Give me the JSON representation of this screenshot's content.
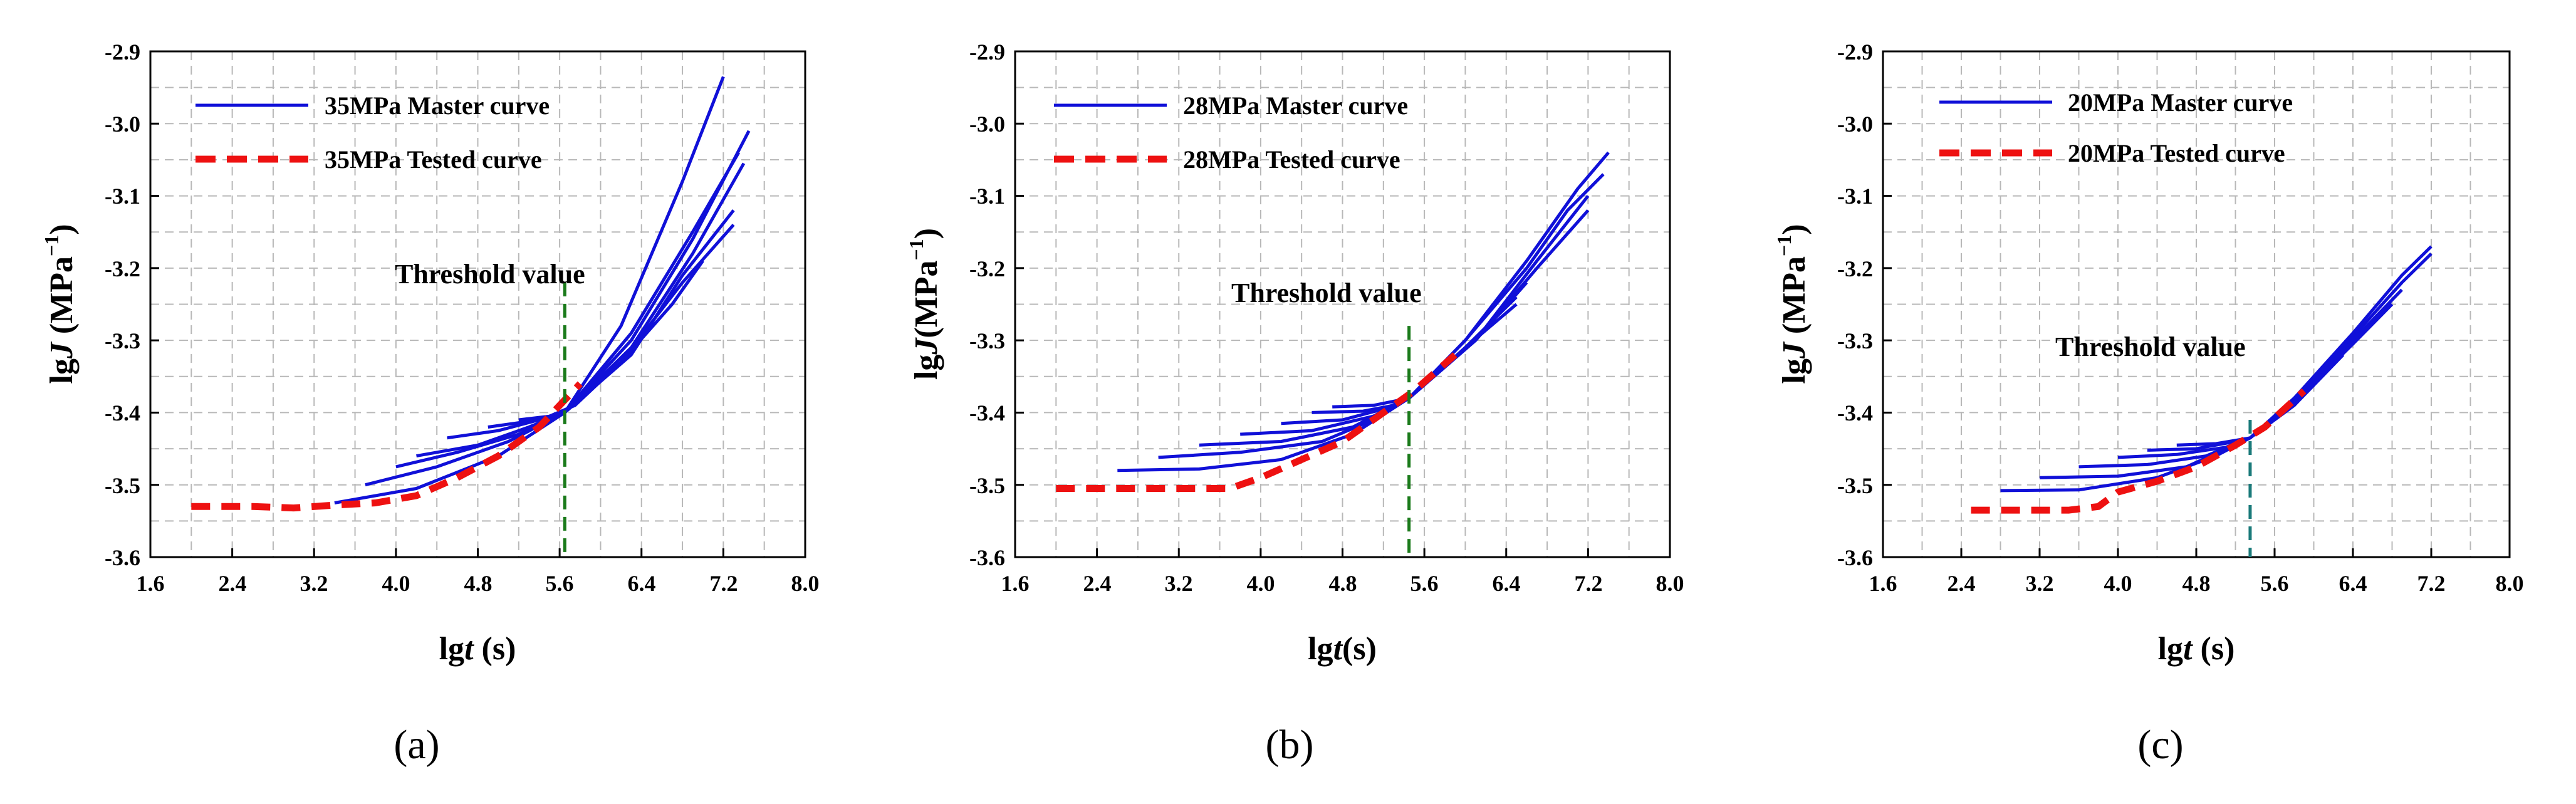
{
  "chart_data": [
    {
      "type": "line",
      "panel_label": "(a)",
      "xlabel_prefix": "lg",
      "xlabel_var": "t",
      "xlabel_suffix": " (s)",
      "ylabel_prefix": "lg",
      "ylabel_var": "J",
      "ylabel_unit": " (MPa",
      "ylabel_exp": "−1",
      "ylabel_close": ")",
      "xlim": [
        1.6,
        8.0
      ],
      "ylim": [
        -3.6,
        -2.9
      ],
      "xticks": [
        1.6,
        2.4,
        3.2,
        4.0,
        4.8,
        5.6,
        6.4,
        7.2,
        8.0
      ],
      "xtick_labels": [
        "1.6",
        "2.4",
        "3.2",
        "4.0",
        "4.8",
        "5.6",
        "6.4",
        "7.2",
        "8.0"
      ],
      "yticks": [
        -2.9,
        -3.0,
        -3.1,
        -3.2,
        -3.3,
        -3.4,
        -3.5,
        -3.6
      ],
      "ytick_labels": [
        "-2.9",
        "-3.0",
        "-3.1",
        "-3.2",
        "-3.3",
        "-3.4",
        "-3.5",
        "-3.6"
      ],
      "grid": true,
      "legend_position": "top-left",
      "legend": [
        "35MPa Master curve",
        "35MPa Tested curve"
      ],
      "threshold_label": "Threshold value",
      "threshold": {
        "x": 5.65,
        "y_top": -3.22,
        "color": "#1a7a1a"
      },
      "master_color": "#1010d8",
      "tested_color": "#ee1111",
      "series": [
        {
          "name": "master-1",
          "x": [
            3.4,
            4.2,
            5.0,
            5.65,
            6.2,
            6.8,
            7.2
          ],
          "y": [
            -3.525,
            -3.505,
            -3.46,
            -3.4,
            -3.28,
            -3.08,
            -2.935
          ]
        },
        {
          "name": "master-2",
          "x": [
            3.7,
            4.4,
            5.1,
            5.65,
            6.3,
            6.9,
            7.35
          ],
          "y": [
            -3.5,
            -3.475,
            -3.44,
            -3.4,
            -3.29,
            -3.15,
            -3.04
          ]
        },
        {
          "name": "master-3",
          "x": [
            4.0,
            4.6,
            5.2,
            5.65,
            6.3,
            6.9,
            7.45
          ],
          "y": [
            -3.475,
            -3.455,
            -3.43,
            -3.4,
            -3.3,
            -3.16,
            -3.01
          ]
        },
        {
          "name": "master-4",
          "x": [
            4.2,
            4.8,
            5.3,
            5.65,
            6.3,
            6.9,
            7.4
          ],
          "y": [
            -3.46,
            -3.445,
            -3.42,
            -3.4,
            -3.31,
            -3.18,
            -3.055
          ]
        },
        {
          "name": "master-5",
          "x": [
            4.5,
            5.0,
            5.4,
            5.65,
            6.3,
            6.8,
            7.3
          ],
          "y": [
            -3.435,
            -3.425,
            -3.41,
            -3.4,
            -3.32,
            -3.21,
            -3.12
          ]
        },
        {
          "name": "master-6",
          "x": [
            4.9,
            5.3,
            5.65,
            6.2,
            6.8,
            7.3
          ],
          "y": [
            -3.42,
            -3.412,
            -3.4,
            -3.33,
            -3.22,
            -3.14
          ]
        },
        {
          "name": "master-7",
          "x": [
            5.2,
            5.5,
            5.75,
            6.2,
            6.7,
            7.0
          ],
          "y": [
            -3.41,
            -3.405,
            -3.39,
            -3.33,
            -3.25,
            -3.19
          ]
        },
        {
          "name": "tested",
          "dashed": true,
          "x": [
            2.0,
            2.6,
            3.0,
            3.4,
            3.8,
            4.2,
            4.6,
            5.0,
            5.4,
            5.8
          ],
          "y": [
            -3.53,
            -3.53,
            -3.532,
            -3.528,
            -3.525,
            -3.515,
            -3.49,
            -3.46,
            -3.42,
            -3.36
          ]
        }
      ]
    },
    {
      "type": "line",
      "panel_label": "(b)",
      "xlabel_prefix": "lg",
      "xlabel_var": "t",
      "xlabel_suffix": "(s)",
      "ylabel_prefix": "lg",
      "ylabel_var": "J",
      "ylabel_unit": "(MPa",
      "ylabel_exp": "−1",
      "ylabel_close": ")",
      "xlim": [
        1.6,
        8.0
      ],
      "ylim": [
        -3.6,
        -2.9
      ],
      "xticks": [
        1.6,
        2.4,
        3.2,
        4.0,
        4.8,
        5.6,
        6.4,
        7.2,
        8.0
      ],
      "xtick_labels": [
        "1.6",
        "2.4",
        "3.2",
        "4.0",
        "4.8",
        "5.6",
        "6.4",
        "7.2",
        "8.0"
      ],
      "yticks": [
        -2.9,
        -3.0,
        -3.1,
        -3.2,
        -3.3,
        -3.4,
        -3.5,
        -3.6
      ],
      "ytick_labels": [
        "-2.9",
        "-3.0",
        "-3.1",
        "-3.2",
        "-3.3",
        "-3.4",
        "-3.5",
        "-3.6"
      ],
      "grid": true,
      "legend_position": "top-left",
      "legend": [
        "28MPa Master curve",
        "28MPa Tested curve"
      ],
      "threshold_label": "Threshold value",
      "threshold": {
        "x": 5.45,
        "y_top": -3.28,
        "color": "#1a7a1a"
      },
      "master_color": "#1010d8",
      "tested_color": "#ee1111",
      "series": [
        {
          "name": "master-1",
          "x": [
            2.6,
            3.4,
            4.2,
            4.9,
            5.45,
            6.0,
            6.6,
            7.1,
            7.4
          ],
          "y": [
            -3.48,
            -3.478,
            -3.465,
            -3.43,
            -3.38,
            -3.3,
            -3.19,
            -3.09,
            -3.04
          ]
        },
        {
          "name": "master-2",
          "x": [
            3.0,
            3.8,
            4.6,
            5.1,
            5.45,
            6.0,
            6.6,
            7.0,
            7.35
          ],
          "y": [
            -3.462,
            -3.455,
            -3.44,
            -3.41,
            -3.38,
            -3.3,
            -3.2,
            -3.12,
            -3.07
          ]
        },
        {
          "name": "master-3",
          "x": [
            3.4,
            4.2,
            4.9,
            5.45,
            6.1,
            6.7,
            7.2
          ],
          "y": [
            -3.445,
            -3.44,
            -3.42,
            -3.38,
            -3.3,
            -3.19,
            -3.1
          ]
        },
        {
          "name": "master-4",
          "x": [
            3.8,
            4.5,
            5.1,
            5.45,
            6.1,
            6.7,
            7.2
          ],
          "y": [
            -3.43,
            -3.425,
            -3.405,
            -3.38,
            -3.3,
            -3.2,
            -3.12
          ]
        },
        {
          "name": "master-5",
          "x": [
            4.2,
            4.8,
            5.2,
            5.45,
            6.1,
            6.6
          ],
          "y": [
            -3.415,
            -3.41,
            -3.395,
            -3.38,
            -3.3,
            -3.22
          ]
        },
        {
          "name": "master-6",
          "x": [
            4.5,
            5.0,
            5.3,
            5.45,
            6.0,
            6.5
          ],
          "y": [
            -3.4,
            -3.398,
            -3.39,
            -3.38,
            -3.31,
            -3.24
          ]
        },
        {
          "name": "master-7",
          "x": [
            4.7,
            5.1,
            5.45,
            6.0,
            6.5
          ],
          "y": [
            -3.392,
            -3.39,
            -3.38,
            -3.31,
            -3.25
          ]
        },
        {
          "name": "tested",
          "dashed": true,
          "x": [
            2.0,
            2.6,
            3.2,
            3.7,
            4.0,
            4.4,
            4.8,
            5.2,
            5.5,
            5.9
          ],
          "y": [
            -3.505,
            -3.505,
            -3.505,
            -3.505,
            -3.49,
            -3.465,
            -3.44,
            -3.4,
            -3.37,
            -3.32
          ]
        }
      ]
    },
    {
      "type": "line",
      "panel_label": "(c)",
      "xlabel_prefix": "lg",
      "xlabel_var": "t",
      "xlabel_suffix": " (s)",
      "ylabel_prefix": "lg",
      "ylabel_var": "J",
      "ylabel_unit": " (MPa",
      "ylabel_exp": "−1",
      "ylabel_close": ")",
      "xlim": [
        1.6,
        8.0
      ],
      "ylim": [
        -3.6,
        -2.9
      ],
      "xticks": [
        1.6,
        2.4,
        3.2,
        4.0,
        4.8,
        5.6,
        6.4,
        7.2,
        8.0
      ],
      "xtick_labels": [
        "1.6",
        "2.4",
        "3.2",
        "4.0",
        "4.8",
        "5.6",
        "6.4",
        "7.2",
        "8.0"
      ],
      "yticks": [
        -2.9,
        -3.0,
        -3.1,
        -3.2,
        -3.3,
        -3.4,
        -3.5,
        -3.6
      ],
      "ytick_labels": [
        "-2.9",
        "-3.0",
        "-3.1",
        "-3.2",
        "-3.3",
        "-3.4",
        "-3.5",
        "-3.6"
      ],
      "grid": true,
      "legend_position": "top-left",
      "legend": [
        "20MPa Master curve",
        "20MPa Tested curve"
      ],
      "threshold_label": "Threshold value",
      "threshold": {
        "x": 5.35,
        "y_top": -3.41,
        "color": "#1a7a7a"
      },
      "master_color": "#1010d8",
      "tested_color": "#ee1111",
      "series": [
        {
          "name": "master-1",
          "x": [
            2.8,
            3.6,
            4.4,
            5.0,
            5.35,
            5.8,
            6.4,
            6.9,
            7.2
          ],
          "y": [
            -3.508,
            -3.507,
            -3.49,
            -3.46,
            -3.435,
            -3.38,
            -3.29,
            -3.21,
            -3.17
          ]
        },
        {
          "name": "master-2",
          "x": [
            3.2,
            4.0,
            4.7,
            5.35,
            5.8,
            6.4,
            6.9,
            7.2
          ],
          "y": [
            -3.49,
            -3.488,
            -3.475,
            -3.435,
            -3.38,
            -3.295,
            -3.22,
            -3.18
          ]
        },
        {
          "name": "master-3",
          "x": [
            3.6,
            4.3,
            4.9,
            5.35,
            5.8,
            6.4,
            6.9
          ],
          "y": [
            -3.475,
            -3.472,
            -3.46,
            -3.435,
            -3.385,
            -3.3,
            -3.23
          ]
        },
        {
          "name": "master-4",
          "x": [
            4.0,
            4.6,
            5.1,
            5.35,
            5.8,
            6.4,
            6.8
          ],
          "y": [
            -3.462,
            -3.458,
            -3.448,
            -3.435,
            -3.385,
            -3.305,
            -3.25
          ]
        },
        {
          "name": "master-5",
          "x": [
            4.3,
            4.8,
            5.2,
            5.35,
            5.8,
            6.3
          ],
          "y": [
            -3.452,
            -3.45,
            -3.44,
            -3.435,
            -3.39,
            -3.32
          ]
        },
        {
          "name": "master-6",
          "x": [
            4.6,
            5.0,
            5.35,
            5.8,
            6.2
          ],
          "y": [
            -3.445,
            -3.443,
            -3.435,
            -3.39,
            -3.33
          ]
        },
        {
          "name": "tested",
          "dashed": true,
          "x": [
            2.5,
            3.0,
            3.5,
            3.8,
            4.0,
            4.4,
            4.8,
            5.2,
            5.5,
            5.9
          ],
          "y": [
            -3.535,
            -3.535,
            -3.535,
            -3.53,
            -3.51,
            -3.495,
            -3.475,
            -3.445,
            -3.42,
            -3.37
          ]
        }
      ]
    }
  ]
}
